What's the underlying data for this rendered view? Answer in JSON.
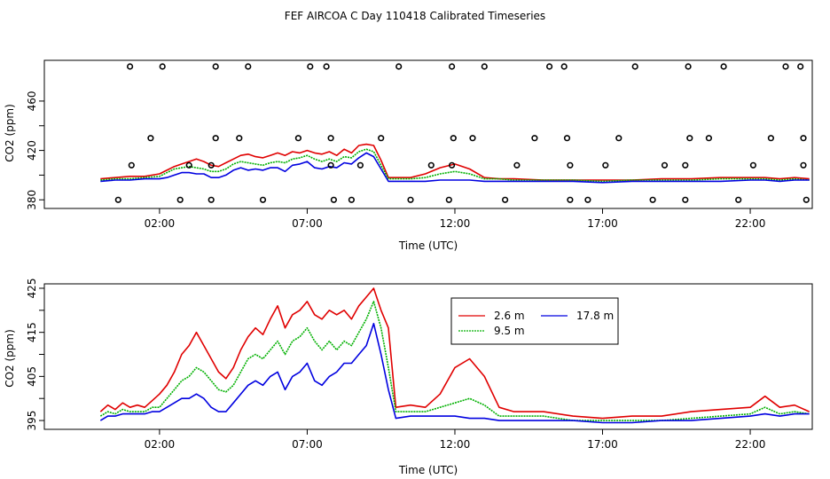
{
  "chart_data": {
    "title": "FEF AIRCOA C  Day 110418  Calibrated Timeseries",
    "colors": {
      "2.6 m": "#e00000",
      "9.5 m": "#00b000",
      "17.8 m": "#0000e0",
      "marker": "#000000"
    },
    "panels": [
      {
        "type": "line",
        "title": "",
        "xlabel": "Time (UTC)",
        "ylabel": "CO2 (ppm)",
        "xlim": [
          -1.9,
          24.1
        ],
        "ylim": [
          373,
          493
        ],
        "xticks": [
          2,
          7,
          12,
          17,
          22
        ],
        "xtick_labels": [
          "02:00",
          "07:00",
          "12:00",
          "17:00",
          "22:00"
        ],
        "yticks": [
          380,
          420,
          460
        ],
        "ytick_labels": [
          "380",
          "420",
          "460"
        ],
        "minor_yticks": [
          400,
          440
        ],
        "x": [
          0,
          0.5,
          1,
          1.5,
          2,
          2.25,
          2.5,
          2.75,
          3,
          3.25,
          3.5,
          3.75,
          4,
          4.25,
          4.5,
          4.75,
          5,
          5.25,
          5.5,
          5.75,
          6,
          6.25,
          6.5,
          6.75,
          7,
          7.25,
          7.5,
          7.75,
          8,
          8.25,
          8.5,
          8.75,
          9,
          9.25,
          9.5,
          9.75,
          10,
          10.5,
          11,
          11.5,
          12,
          12.5,
          13,
          13.5,
          14,
          15,
          16,
          17,
          18,
          19,
          20,
          21,
          22,
          22.5,
          23,
          23.5,
          24
        ],
        "series": [
          {
            "name": "2.6 m",
            "values": [
              397,
              398,
              399,
              399,
              401,
              404,
              407,
              409,
              411,
              413,
              411,
              408,
              407,
              410,
              413,
              416,
              417,
              415,
              414,
              416,
              418,
              416,
              419,
              418,
              420,
              418,
              417,
              419,
              416,
              421,
              418,
              424,
              425,
              424,
              412,
              398,
              398,
              398,
              401,
              406,
              409,
              405,
              398,
              397,
              397,
              396,
              396,
              396,
              396,
              397,
              397,
              398,
              398,
              398,
              397,
              398,
              397
            ]
          },
          {
            "name": "9.5 m",
            "values": [
              396,
              397,
              397,
              398,
              399,
              402,
              405,
              406,
              407,
              406,
              405,
              403,
              403,
              405,
              409,
              411,
              410,
              409,
              408,
              410,
              411,
              410,
              413,
              414,
              416,
              413,
              411,
              413,
              411,
              415,
              414,
              419,
              421,
              419,
              408,
              397,
              397,
              397,
              398,
              401,
              403,
              401,
              397,
              397,
              396,
              396,
              396,
              395,
              396,
              396,
              396,
              397,
              397,
              397,
              396,
              397,
              396
            ]
          },
          {
            "name": "17.8 m",
            "values": [
              395,
              396,
              396,
              397,
              397,
              398,
              400,
              402,
              402,
              401,
              401,
              398,
              398,
              400,
              404,
              406,
              404,
              405,
              404,
              406,
              406,
              403,
              408,
              409,
              411,
              406,
              405,
              407,
              406,
              410,
              409,
              414,
              418,
              415,
              405,
              395,
              395,
              395,
              395,
              396,
              396,
              396,
              395,
              395,
              395,
              395,
              395,
              394,
              395,
              395,
              395,
              395,
              396,
              396,
              395,
              396,
              396
            ]
          }
        ],
        "markers": {
          "name": "status flags",
          "x": [
            1,
            2.1,
            3.9,
            5,
            7.1,
            7.65,
            10.1,
            11.9,
            13,
            15.2,
            15.7,
            18.1,
            19.9,
            21.1,
            23.2,
            23.7,
            1.7,
            3.9,
            4.7,
            6.7,
            7.8,
            9.5,
            11.95,
            12.6,
            14.7,
            15.8,
            17.55,
            19.95,
            20.6,
            22.7,
            23.8,
            1.05,
            3.0,
            3.75,
            7.8,
            8.8,
            11.2,
            11.9,
            14.1,
            15.9,
            17.1,
            19.1,
            19.8,
            22.1,
            23.8,
            0.6,
            2.7,
            3.75,
            5.5,
            7.9,
            8.5,
            10.5,
            11.8,
            13.7,
            15.9,
            16.5,
            18.7,
            19.8,
            21.6,
            23.9
          ],
          "y": [
            488,
            488,
            488,
            488,
            488,
            488,
            488,
            488,
            488,
            488,
            488,
            488,
            488,
            488,
            488,
            488,
            430,
            430,
            430,
            430,
            430,
            430,
            430,
            430,
            430,
            430,
            430,
            430,
            430,
            430,
            430,
            408,
            408,
            408,
            408,
            408,
            408,
            408,
            408,
            408,
            408,
            408,
            408,
            408,
            408,
            380,
            380,
            380,
            380,
            380,
            380,
            380,
            380,
            380,
            380,
            380,
            380,
            380,
            380,
            380
          ]
        }
      },
      {
        "type": "line",
        "title": "",
        "xlabel": "Time (UTC)",
        "ylabel": "CO2 (ppm)",
        "xlim": [
          -1.9,
          24.1
        ],
        "ylim": [
          393,
          426
        ],
        "xticks": [
          2,
          7,
          12,
          17,
          22
        ],
        "xtick_labels": [
          "02:00",
          "07:00",
          "12:00",
          "17:00",
          "22:00"
        ],
        "yticks": [
          395,
          405,
          415,
          425
        ],
        "ytick_labels": [
          "395",
          "405",
          "415",
          "425"
        ],
        "minor_yticks": [
          400,
          410,
          420
        ],
        "legend": {
          "position": "top-center",
          "entries": [
            "2.6 m",
            "17.8 m",
            "9.5 m"
          ]
        },
        "x": [
          0,
          0.25,
          0.5,
          0.75,
          1,
          1.25,
          1.5,
          1.75,
          2,
          2.25,
          2.5,
          2.75,
          3,
          3.25,
          3.5,
          3.75,
          4,
          4.25,
          4.5,
          4.75,
          5,
          5.25,
          5.5,
          5.75,
          6,
          6.25,
          6.5,
          6.75,
          7,
          7.25,
          7.5,
          7.75,
          8,
          8.25,
          8.5,
          8.75,
          9,
          9.25,
          9.5,
          9.75,
          10,
          10.5,
          11,
          11.5,
          12,
          12.5,
          13,
          13.5,
          14,
          15,
          16,
          17,
          18,
          19,
          20,
          21,
          22,
          22.5,
          23,
          23.5,
          24
        ],
        "series": [
          {
            "name": "2.6 m",
            "values": [
              397,
              398.5,
              397.5,
              399,
              398,
              398.5,
              398,
              399.5,
              401,
              403,
              406,
              410,
              412,
              415,
              412,
              409,
              406,
              404.5,
              407,
              411,
              414,
              416,
              414.5,
              418,
              421,
              416,
              419,
              420,
              422,
              419,
              418,
              420,
              419,
              420,
              418,
              421,
              423,
              425,
              420,
              416,
              398,
              398.5,
              398,
              401,
              407,
              409,
              405,
              398,
              397,
              397,
              396,
              395.5,
              396,
              396,
              397,
              397.5,
              398,
              400.5,
              398,
              398.5,
              397
            ]
          },
          {
            "name": "9.5 m",
            "values": [
              396,
              397,
              396.5,
              397.5,
              397,
              397,
              397,
              398,
              398,
              400,
              402,
              404,
              405,
              407,
              406,
              404,
              402,
              401.5,
              403,
              406,
              409,
              410,
              409,
              411,
              413,
              410,
              413,
              414,
              416,
              413,
              411,
              413,
              411,
              413,
              412,
              415,
              418,
              422,
              416,
              407,
              397,
              397,
              397,
              398,
              399,
              400,
              398.5,
              396,
              396,
              396,
              395,
              395,
              395,
              395,
              395.5,
              396,
              396.5,
              398,
              396.5,
              397,
              396.5
            ]
          },
          {
            "name": "17.8 m",
            "values": [
              395,
              396,
              396,
              396.5,
              396.5,
              396.5,
              396.5,
              397,
              397,
              398,
              399,
              400,
              400,
              401,
              400,
              398,
              397,
              397,
              399,
              401,
              403,
              404,
              403,
              405,
              406,
              402,
              405,
              406,
              408,
              404,
              403,
              405,
              406,
              408,
              408,
              410,
              412,
              417,
              410,
              402,
              395.5,
              396,
              396,
              396,
              396,
              395.5,
              395.5,
              395,
              395,
              395,
              395,
              394.5,
              394.5,
              395,
              395,
              395.5,
              396,
              396.5,
              396,
              396.5,
              396.5
            ]
          }
        ]
      }
    ]
  }
}
